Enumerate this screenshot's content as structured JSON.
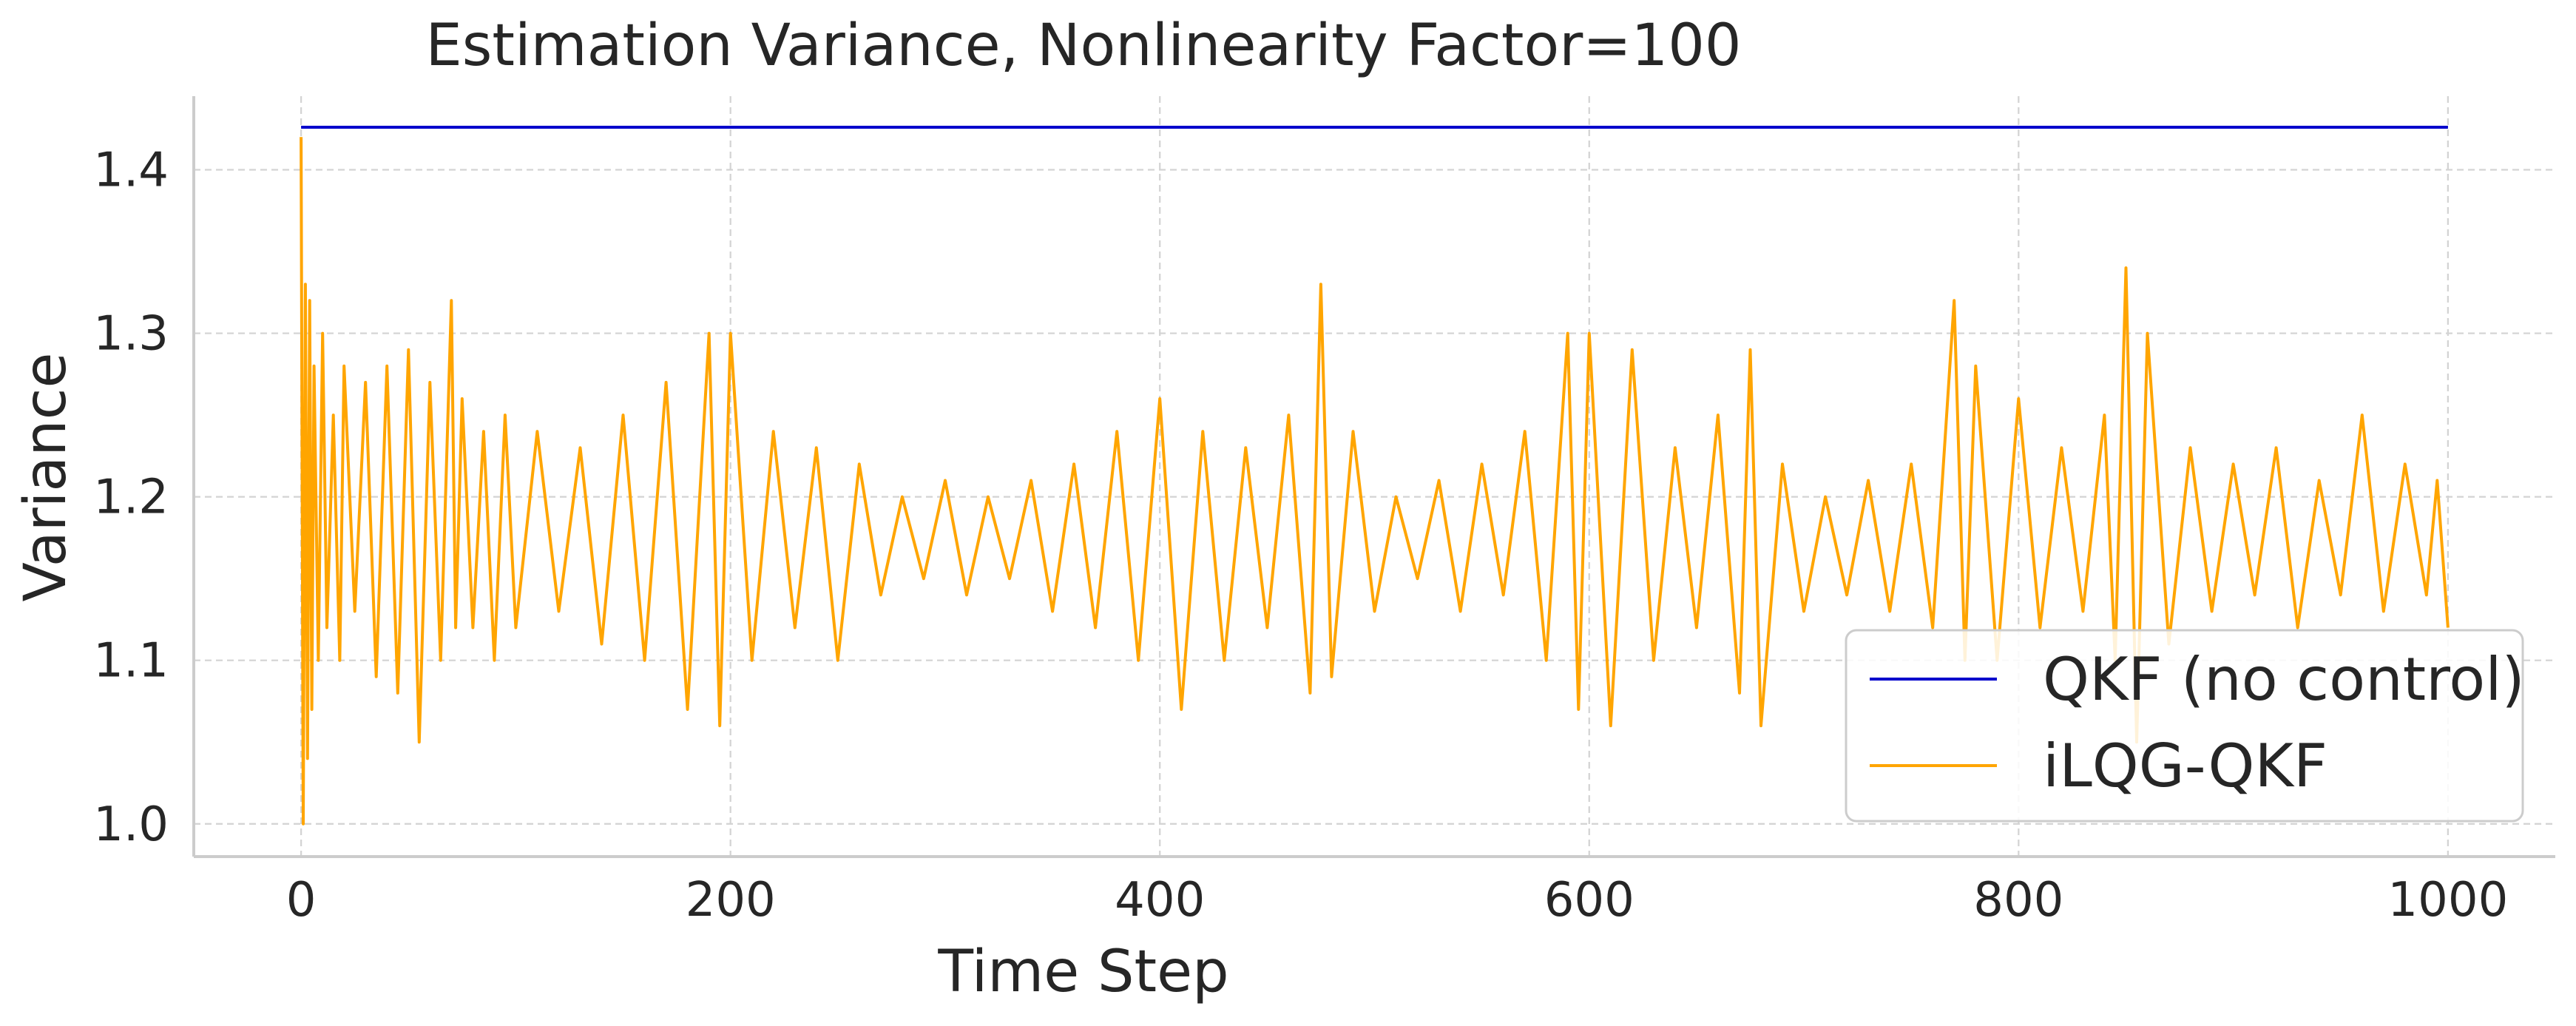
{
  "chart_data": {
    "type": "line",
    "title": "Estimation Variance, Nonlinearity Factor=100",
    "xlabel": "Time Step",
    "ylabel": "Variance",
    "xlim": [
      -50,
      1050
    ],
    "ylim": [
      0.98,
      1.445
    ],
    "xticks": [
      0,
      200,
      400,
      600,
      800,
      1000
    ],
    "xtick_labels": [
      "0",
      "200",
      "400",
      "600",
      "800",
      "1000"
    ],
    "yticks": [
      1.0,
      1.1,
      1.2,
      1.3,
      1.4
    ],
    "ytick_labels": [
      "1.0",
      "1.1",
      "1.2",
      "1.3",
      "1.4"
    ],
    "grid": true,
    "legend_position": "lower right",
    "series": [
      {
        "name": "QKF (no control)",
        "color": "#0000cc",
        "x": [
          0,
          1000
        ],
        "y": [
          1.426,
          1.426
        ]
      },
      {
        "name": "iLQG-QKF",
        "color": "#ffa500",
        "x": [
          0,
          1,
          2,
          3,
          4,
          5,
          6,
          8,
          10,
          12,
          15,
          18,
          20,
          25,
          30,
          35,
          40,
          45,
          50,
          55,
          60,
          65,
          70,
          72,
          75,
          80,
          85,
          90,
          95,
          100,
          110,
          120,
          130,
          140,
          150,
          160,
          170,
          180,
          190,
          195,
          200,
          210,
          220,
          230,
          240,
          250,
          260,
          270,
          280,
          290,
          300,
          310,
          320,
          330,
          340,
          350,
          360,
          370,
          380,
          390,
          400,
          410,
          420,
          430,
          440,
          450,
          460,
          470,
          475,
          480,
          490,
          500,
          510,
          520,
          530,
          540,
          550,
          560,
          570,
          580,
          590,
          595,
          600,
          610,
          620,
          630,
          640,
          650,
          660,
          670,
          675,
          680,
          690,
          700,
          710,
          720,
          730,
          740,
          750,
          760,
          770,
          775,
          780,
          790,
          800,
          810,
          820,
          830,
          840,
          845,
          850,
          855,
          860,
          870,
          880,
          890,
          900,
          910,
          920,
          930,
          940,
          950,
          960,
          970,
          980,
          990,
          995,
          1000
        ],
        "y": [
          1.42,
          1.0,
          1.33,
          1.04,
          1.32,
          1.07,
          1.28,
          1.1,
          1.3,
          1.12,
          1.25,
          1.1,
          1.28,
          1.13,
          1.27,
          1.09,
          1.28,
          1.08,
          1.29,
          1.05,
          1.27,
          1.1,
          1.32,
          1.12,
          1.26,
          1.12,
          1.24,
          1.1,
          1.25,
          1.12,
          1.24,
          1.13,
          1.23,
          1.11,
          1.25,
          1.1,
          1.27,
          1.07,
          1.3,
          1.06,
          1.3,
          1.1,
          1.24,
          1.12,
          1.23,
          1.1,
          1.22,
          1.14,
          1.2,
          1.15,
          1.21,
          1.14,
          1.2,
          1.15,
          1.21,
          1.13,
          1.22,
          1.12,
          1.24,
          1.1,
          1.26,
          1.07,
          1.24,
          1.1,
          1.23,
          1.12,
          1.25,
          1.08,
          1.33,
          1.09,
          1.24,
          1.13,
          1.2,
          1.15,
          1.21,
          1.13,
          1.22,
          1.14,
          1.24,
          1.1,
          1.3,
          1.07,
          1.3,
          1.06,
          1.29,
          1.1,
          1.23,
          1.12,
          1.25,
          1.08,
          1.29,
          1.06,
          1.22,
          1.13,
          1.2,
          1.14,
          1.21,
          1.13,
          1.22,
          1.12,
          1.32,
          1.1,
          1.28,
          1.1,
          1.26,
          1.12,
          1.23,
          1.13,
          1.25,
          1.1,
          1.34,
          1.05,
          1.3,
          1.11,
          1.23,
          1.13,
          1.22,
          1.14,
          1.23,
          1.12,
          1.21,
          1.14,
          1.25,
          1.13,
          1.22,
          1.14,
          1.21,
          1.12
        ]
      }
    ]
  }
}
